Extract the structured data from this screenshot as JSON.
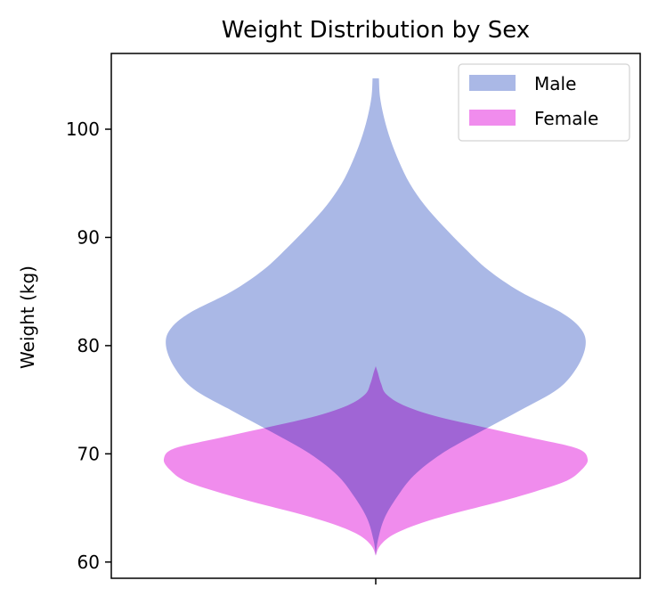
{
  "chart_data": {
    "type": "violin",
    "title": "Weight Distribution by Sex",
    "xlabel": "",
    "ylabel": "Weight (kg)",
    "ylim": [
      58.5,
      107
    ],
    "yticks": [
      60,
      70,
      80,
      90,
      100
    ],
    "xticks": [
      ""
    ],
    "grid": false,
    "legend": {
      "placement": "top-right",
      "entries": [
        "Male",
        "Female"
      ]
    },
    "series": [
      {
        "name": "Male",
        "color": "#aab8e6",
        "profile": [
          [
            60.6,
            0.0
          ],
          [
            62.0,
            0.01
          ],
          [
            64.0,
            0.04
          ],
          [
            66.0,
            0.1
          ],
          [
            68.0,
            0.18
          ],
          [
            70.0,
            0.31
          ],
          [
            72.0,
            0.49
          ],
          [
            74.0,
            0.68
          ],
          [
            76.0,
            0.86
          ],
          [
            78.0,
            0.95
          ],
          [
            80.0,
            0.99
          ],
          [
            81.5,
            0.97
          ],
          [
            83.0,
            0.88
          ],
          [
            85.0,
            0.68
          ],
          [
            87.0,
            0.53
          ],
          [
            89.0,
            0.42
          ],
          [
            91.0,
            0.32
          ],
          [
            93.0,
            0.23
          ],
          [
            95.0,
            0.16
          ],
          [
            97.0,
            0.11
          ],
          [
            99.0,
            0.07
          ],
          [
            101.0,
            0.04
          ],
          [
            103.0,
            0.02
          ],
          [
            104.7,
            0.015
          ]
        ]
      },
      {
        "name": "Female",
        "color": "#f08ced",
        "profile": [
          [
            60.6,
            0.0
          ],
          [
            61.5,
            0.02
          ],
          [
            62.5,
            0.08
          ],
          [
            63.5,
            0.2
          ],
          [
            64.5,
            0.37
          ],
          [
            65.5,
            0.57
          ],
          [
            66.5,
            0.75
          ],
          [
            67.5,
            0.9
          ],
          [
            68.5,
            0.97
          ],
          [
            69.5,
            1.0
          ],
          [
            70.5,
            0.95
          ],
          [
            71.5,
            0.73
          ],
          [
            72.5,
            0.5
          ],
          [
            73.5,
            0.28
          ],
          [
            74.5,
            0.13
          ],
          [
            75.5,
            0.05
          ],
          [
            76.5,
            0.025
          ],
          [
            77.5,
            0.01
          ],
          [
            78.1,
            0.0
          ]
        ]
      }
    ]
  }
}
